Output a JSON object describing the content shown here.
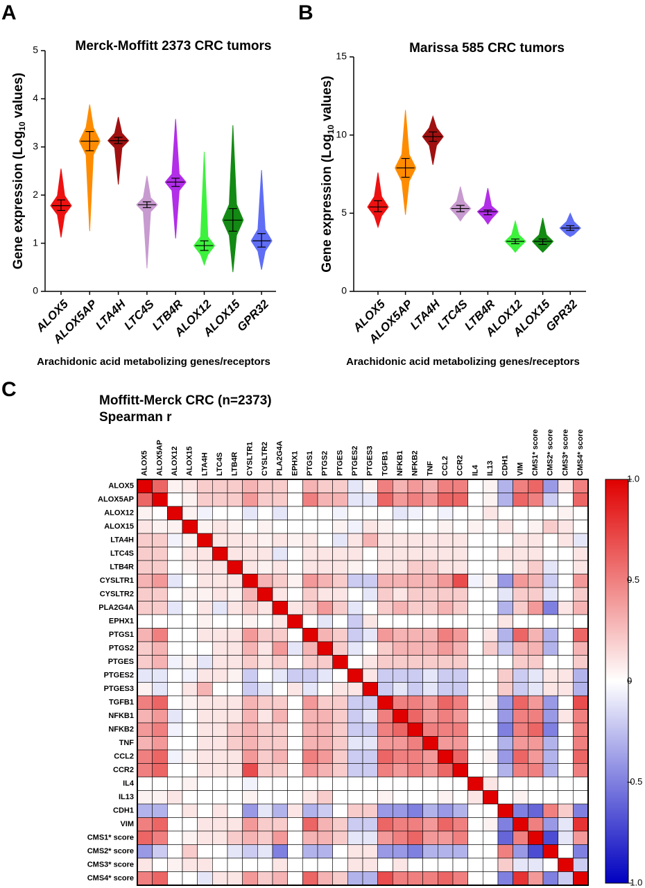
{
  "chart_data": [
    {
      "type": "swarm",
      "panel": "A",
      "title": "Merck-Moffitt 2373 CRC tumors",
      "y_label": "Gene expression (Log",
      "y_label_sub": "10",
      "y_label_end": "values)",
      "x_label": "Arachidonic acid metabolizing genes/receptors",
      "categories": [
        "ALOX5",
        "ALOX5AP",
        "LTA4H",
        "LTC4S",
        "LTB4R",
        "ALOX12",
        "ALOX15",
        "GPR32"
      ],
      "colors": [
        "#ee1111",
        "#ff8c00",
        "#a01010",
        "#c79ad0",
        "#b22ee8",
        "#3df23d",
        "#138a13",
        "#5f6ef5"
      ],
      "median": [
        1.78,
        3.12,
        3.13,
        1.8,
        2.27,
        0.95,
        1.48,
        1.05
      ],
      "q1": [
        1.68,
        2.92,
        3.07,
        1.74,
        2.18,
        0.85,
        1.25,
        0.92
      ],
      "q3": [
        1.9,
        3.32,
        3.2,
        1.86,
        2.35,
        1.05,
        1.72,
        1.2
      ],
      "min": [
        1.12,
        1.25,
        2.22,
        0.48,
        1.1,
        0.55,
        0.4,
        0.45
      ],
      "max": [
        2.55,
        3.88,
        3.62,
        2.4,
        3.58,
        2.9,
        3.45,
        2.52
      ],
      "ylim": [
        0,
        5
      ],
      "yticks": [
        0,
        1,
        2,
        3,
        4,
        5
      ]
    },
    {
      "type": "swarm",
      "panel": "B",
      "title": "Marissa 585 CRC tumors",
      "y_label": "Gene expression (Log",
      "y_label_sub": "10",
      "y_label_end": "values)",
      "x_label": "Arachidonic acid metabolizing genes/receptors",
      "categories": [
        "ALOX5",
        "ALOX5AP",
        "LTA4H",
        "LTC4S",
        "LTB4R",
        "ALOX12",
        "ALOX15",
        "GPR32"
      ],
      "colors": [
        "#ee1111",
        "#ff8c00",
        "#a01010",
        "#c79ad0",
        "#b22ee8",
        "#3df23d",
        "#138a13",
        "#5f6ef5"
      ],
      "median": [
        5.4,
        7.9,
        9.9,
        5.3,
        5.1,
        3.2,
        3.2,
        4.05
      ],
      "q1": [
        5.1,
        7.3,
        9.6,
        5.1,
        4.9,
        3.05,
        3.0,
        3.9
      ],
      "q3": [
        5.8,
        8.5,
        10.2,
        5.5,
        5.2,
        3.35,
        3.35,
        4.2
      ],
      "min": [
        4.1,
        4.9,
        8.1,
        4.5,
        4.3,
        2.5,
        2.5,
        3.5
      ],
      "max": [
        7.6,
        11.6,
        11.2,
        6.7,
        6.6,
        4.5,
        4.7,
        5.0
      ],
      "ylim": [
        0,
        15
      ],
      "yticks": [
        0,
        5,
        10,
        15
      ]
    },
    {
      "type": "heatmap",
      "panel": "C",
      "title": "Moffitt-Merck CRC (n=2373)",
      "subtitle": "Spearman r",
      "labels": [
        "ALOX5",
        "ALOX5AP",
        "ALOX12",
        "ALOX15",
        "LTA4H",
        "LTC4S",
        "LTB4R",
        "CYSLTR1",
        "CYSLTR2",
        "PLA2G4A",
        "EPHX1",
        "PTGS1",
        "PTGS2",
        "PTGES",
        "PTGES2",
        "PTGES3",
        "TGFB1",
        "NFKB1",
        "NFKB2",
        "TNF",
        "CCL2",
        "CCR2",
        "IL4",
        "IL13",
        "CDH1",
        "VIM",
        "CMS1* score",
        "CMS2* score",
        "CMS3* score",
        "CMS4* score"
      ],
      "values": [
        [
          1
        ],
        [
          0.6,
          1
        ],
        [
          0.05,
          0,
          1
        ],
        [
          0.1,
          0.05,
          0.05,
          1
        ],
        [
          0.2,
          0.2,
          -0.05,
          0.05,
          1
        ],
        [
          0.2,
          0.2,
          0,
          0.1,
          0.1,
          1
        ],
        [
          0.2,
          0.2,
          0,
          0.05,
          0.1,
          0.1,
          1
        ],
        [
          0.3,
          0.4,
          -0.1,
          0,
          0.1,
          0.1,
          0.1,
          1
        ],
        [
          0.2,
          0.2,
          0,
          0.05,
          0.05,
          0.1,
          0.05,
          0.3,
          1
        ],
        [
          0.2,
          0.2,
          -0.1,
          0,
          0.1,
          -0.1,
          0.1,
          0.2,
          0.1,
          1
        ],
        [
          0,
          0,
          0,
          0,
          0.05,
          0,
          0,
          0.05,
          0,
          0.1,
          1
        ],
        [
          0.3,
          0.5,
          0,
          0,
          0.1,
          0.1,
          0.1,
          0.4,
          0.2,
          0.2,
          0,
          1
        ],
        [
          0.2,
          0.3,
          0,
          0,
          0,
          0.1,
          0.1,
          0.3,
          0.1,
          0.4,
          -0.1,
          0.3,
          1
        ],
        [
          0.2,
          0.3,
          -0.05,
          0.05,
          -0.1,
          0.1,
          0.1,
          0.2,
          0.1,
          0.2,
          0,
          0.2,
          0.2,
          1
        ],
        [
          -0.1,
          -0.1,
          0,
          -0.05,
          0.1,
          0.1,
          0.05,
          -0.2,
          0,
          -0.1,
          -0.2,
          -0.2,
          -0.1,
          0,
          1
        ],
        [
          0.05,
          -0.1,
          0,
          0.1,
          0.3,
          0,
          0,
          -0.2,
          -0.1,
          0,
          0.1,
          -0.1,
          0,
          0.1,
          0.1,
          1
        ],
        [
          0.5,
          0.6,
          0,
          0.05,
          0.1,
          0.1,
          0.1,
          0.3,
          0.2,
          0.2,
          0,
          0.4,
          0.2,
          0.2,
          -0.2,
          -0.2,
          1
        ],
        [
          0.3,
          0.4,
          -0.1,
          0,
          0.1,
          0.1,
          0.1,
          0.3,
          0.1,
          0.3,
          0,
          0.3,
          0.3,
          0.2,
          -0.2,
          -0.1,
          0.5,
          1
        ],
        [
          0.4,
          0.5,
          -0.05,
          0,
          0.1,
          0.1,
          0.2,
          0.3,
          0.2,
          0.2,
          0,
          0.3,
          0.3,
          0.2,
          -0.2,
          -0.2,
          0.5,
          0.6,
          1
        ],
        [
          0.3,
          0.4,
          0,
          0,
          0.1,
          0.1,
          0.2,
          0.3,
          0.2,
          0.2,
          0,
          0.3,
          0.3,
          0.2,
          -0.1,
          -0.1,
          0.4,
          0.4,
          0.5,
          1
        ],
        [
          0.5,
          0.6,
          -0.05,
          0.05,
          0.1,
          0.1,
          0.1,
          0.4,
          0.2,
          0.3,
          0,
          0.5,
          0.4,
          0.2,
          -0.2,
          -0.2,
          0.6,
          0.5,
          0.5,
          0.4,
          1
        ],
        [
          0.5,
          0.6,
          0,
          0,
          0.1,
          0.1,
          0.1,
          0.7,
          0.2,
          0.2,
          0,
          0.4,
          0.3,
          0.2,
          -0.2,
          -0.2,
          0.5,
          0.4,
          0.5,
          0.4,
          0.6,
          1
        ],
        [
          0,
          0,
          0,
          0.05,
          0,
          0,
          0,
          -0.05,
          0,
          0,
          0,
          0,
          0,
          0,
          0,
          0,
          0,
          0,
          0,
          0,
          0,
          0,
          1
        ],
        [
          0.05,
          0.05,
          0.1,
          0,
          0,
          0,
          0,
          0.05,
          0,
          0,
          0,
          0.1,
          0.2,
          0,
          0,
          0,
          0.05,
          0,
          0,
          0,
          0.05,
          0,
          0.1,
          1
        ],
        [
          -0.3,
          -0.3,
          0,
          0.1,
          0,
          0.1,
          0,
          -0.4,
          -0.1,
          -0.3,
          0.1,
          -0.3,
          -0.2,
          0,
          0.2,
          0.2,
          -0.4,
          -0.4,
          -0.5,
          -0.3,
          -0.4,
          -0.3,
          0,
          0,
          1
        ],
        [
          0.5,
          0.6,
          0,
          0,
          0.1,
          0.1,
          0.1,
          0.4,
          0.2,
          0.2,
          0,
          0.6,
          0.3,
          0.2,
          -0.2,
          -0.2,
          0.6,
          0.5,
          0.5,
          0.4,
          0.6,
          0.5,
          0,
          0.05,
          -0.5,
          1
        ],
        [
          0.6,
          0.5,
          0,
          0.05,
          0.1,
          0.1,
          0.2,
          0.3,
          0.2,
          0.4,
          0,
          0.3,
          0.3,
          0.2,
          -0.1,
          -0.1,
          0.4,
          0.5,
          0.6,
          0.4,
          0.4,
          0.5,
          0,
          0,
          -0.6,
          0.5,
          1
        ],
        [
          -0.4,
          -0.2,
          0,
          0.2,
          0,
          0,
          -0.1,
          -0.2,
          -0.1,
          -0.5,
          0,
          -0.3,
          -0.3,
          0,
          0.1,
          0.1,
          -0.4,
          -0.4,
          -0.5,
          -0.3,
          -0.3,
          -0.3,
          0,
          0,
          0.5,
          -0.4,
          -0.7,
          1
        ],
        [
          0.1,
          0,
          0.05,
          0.1,
          0.1,
          0,
          0,
          0,
          0,
          0.1,
          0,
          0,
          0,
          0,
          0.1,
          0.1,
          0,
          0.1,
          0,
          0,
          0,
          0,
          0,
          0,
          0.2,
          -0.1,
          -0.1,
          0,
          1
        ],
        [
          0.5,
          0.6,
          0,
          0,
          -0.1,
          0.1,
          0.1,
          0.4,
          0.2,
          0.3,
          0,
          0.6,
          0.3,
          0.2,
          -0.3,
          -0.3,
          0.7,
          0.5,
          0.5,
          0.5,
          0.6,
          0.5,
          0,
          0,
          -0.5,
          0.8,
          0.4,
          -0.5,
          -0.2,
          1
        ]
      ],
      "cmap": [
        "#0000c0",
        "#ffffff",
        "#e00000"
      ],
      "clim": [
        -1,
        1
      ],
      "cticks": [
        {
          "value": 1,
          "label": "1.0"
        },
        0.5,
        0,
        -0.5,
        {
          "value": -1,
          "label": "-1.0"
        }
      ]
    }
  ]
}
